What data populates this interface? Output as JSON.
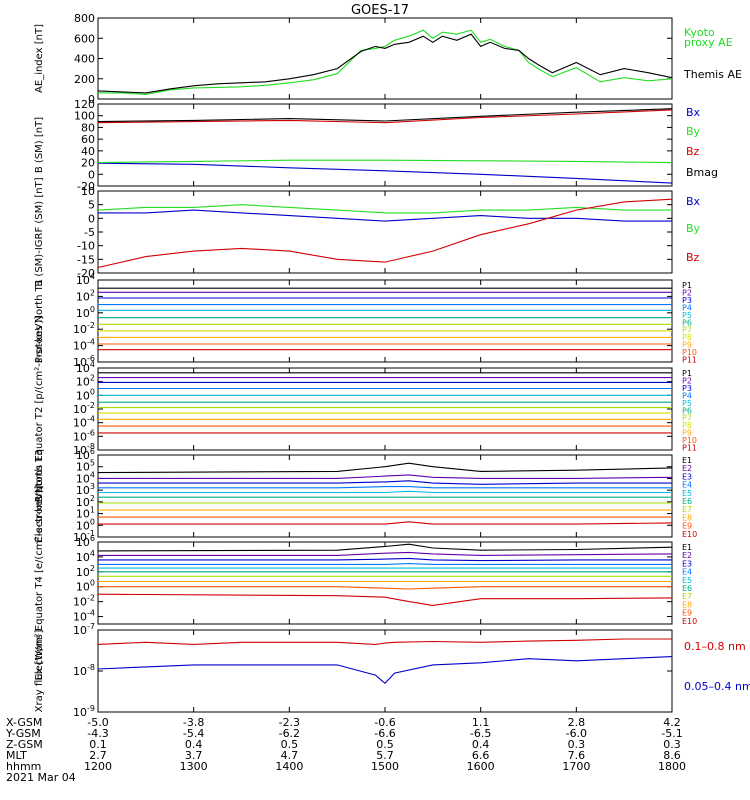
{
  "title": "GOES-17",
  "date": "2021 Mar 04",
  "colors": {
    "black": "#000000",
    "green": "#22dd22",
    "red": "#d00000",
    "blue": "#0000cc",
    "cyan": "#00bbdd",
    "yellow": "#dddd00",
    "orange": "#ff9900"
  },
  "x_axis": {
    "row_labels": [
      "X-GSM",
      "Y-GSM",
      "Z-GSM",
      "MLT",
      "hhmm"
    ],
    "columns": [
      [
        "-5.0",
        "-4.3",
        "0.1",
        "2.7",
        "1200"
      ],
      [
        "-3.8",
        "-5.4",
        "0.4",
        "3.7",
        "1300"
      ],
      [
        "-2.3",
        "-6.2",
        "0.5",
        "4.7",
        "1400"
      ],
      [
        "-0.6",
        "-6.6",
        "0.5",
        "5.7",
        "1500"
      ],
      [
        "1.1",
        "-6.5",
        "0.4",
        "6.6",
        "1600"
      ],
      [
        "2.8",
        "-6.0",
        "0.3",
        "7.6",
        "1700"
      ],
      [
        "4.2",
        "-5.1",
        "0.3",
        "8.6",
        "1800"
      ]
    ]
  },
  "chart_data": [
    {
      "type": "line",
      "ylabel": "AE_index [nT]",
      "y_ticks": [
        "800",
        "600",
        "400",
        "200",
        "0"
      ],
      "ylim": [
        0,
        800
      ],
      "x": [
        12.0,
        12.25,
        12.5,
        12.75,
        13.0,
        13.25,
        13.5,
        13.75,
        14.0,
        14.25,
        14.5,
        14.75,
        14.9,
        15.0,
        15.1,
        15.25,
        15.4,
        15.5,
        15.6,
        15.75,
        15.9,
        16.0,
        16.1,
        16.25,
        16.4,
        16.5,
        16.6,
        16.75,
        17.0,
        17.25,
        17.5,
        17.75,
        18.0
      ],
      "series": [
        {
          "name": "Kyoto proxy AE",
          "color": "#22dd22",
          "values": [
            60,
            60,
            45,
            90,
            110,
            115,
            120,
            135,
            160,
            190,
            250,
            480,
            500,
            520,
            580,
            620,
            680,
            600,
            660,
            640,
            680,
            560,
            590,
            520,
            480,
            360,
            300,
            220,
            310,
            170,
            210,
            180,
            200
          ]
        },
        {
          "name": "Themis AE",
          "color": "#000000",
          "values": [
            80,
            70,
            60,
            100,
            130,
            150,
            160,
            170,
            200,
            240,
            300,
            470,
            520,
            500,
            540,
            560,
            620,
            560,
            620,
            580,
            640,
            520,
            560,
            500,
            480,
            400,
            340,
            260,
            360,
            240,
            300,
            260,
            210
          ]
        }
      ]
    },
    {
      "type": "line",
      "ylabel": "B (SM) [nT]",
      "y_ticks": [
        "120",
        "100",
        "80",
        "60",
        "40",
        "20",
        "0",
        "-20"
      ],
      "ylim": [
        -20,
        120
      ],
      "x": [
        12,
        13,
        14,
        15,
        16,
        17,
        18
      ],
      "series": [
        {
          "name": "Bx",
          "color": "#0000cc",
          "values": [
            19,
            17,
            11,
            6,
            0,
            -7,
            -15
          ]
        },
        {
          "name": "By",
          "color": "#22dd22",
          "values": [
            20,
            22,
            24,
            24,
            23,
            22,
            20
          ]
        },
        {
          "name": "Bz",
          "color": "#d00000",
          "values": [
            88,
            90,
            92,
            88,
            97,
            103,
            110
          ]
        },
        {
          "name": "Bmag",
          "color": "#000000",
          "values": [
            90,
            92,
            95,
            91,
            99,
            106,
            112
          ]
        }
      ]
    },
    {
      "type": "line",
      "ylabel": "B (SM)-IGRF (SM) [nT]",
      "y_ticks": [
        "10",
        "5",
        "0",
        "-5",
        "-10",
        "-15",
        "-20"
      ],
      "ylim": [
        -20,
        10
      ],
      "x": [
        12.0,
        12.5,
        13.0,
        13.5,
        14.0,
        14.5,
        15.0,
        15.5,
        16.0,
        16.5,
        17.0,
        17.5,
        18.0
      ],
      "series": [
        {
          "name": "Bx",
          "color": "#0000cc",
          "values": [
            2,
            2,
            3,
            2,
            1,
            0,
            -1,
            0,
            1,
            0,
            0,
            -1,
            -1
          ]
        },
        {
          "name": "By",
          "color": "#22dd22",
          "values": [
            3,
            4,
            4,
            5,
            4,
            3,
            2,
            2,
            3,
            3,
            4,
            3,
            3
          ]
        },
        {
          "name": "Bz",
          "color": "#d00000",
          "values": [
            -18,
            -14,
            -12,
            -11,
            -12,
            -15,
            -16,
            -12,
            -6,
            -2,
            3,
            6,
            7
          ]
        }
      ]
    },
    {
      "type": "line",
      "ylabel": "Protons North T1",
      "y_ticks": [
        "10^4",
        "10^2",
        "10^0",
        "10^-2",
        "10^-4",
        "10^-6"
      ],
      "y_log_range": [
        -6,
        4
      ],
      "x": [
        12,
        18
      ],
      "series": [
        {
          "name": "P1",
          "color": "#000000",
          "values": [
            3,
            3
          ]
        },
        {
          "name": "P2",
          "color": "#6600aa",
          "values": [
            2.5,
            2.5
          ]
        },
        {
          "name": "P3",
          "color": "#0000cc",
          "values": [
            1.8,
            1.8
          ]
        },
        {
          "name": "P4",
          "color": "#0077ff",
          "values": [
            1.0,
            1.0
          ]
        },
        {
          "name": "P5",
          "color": "#00bbdd",
          "values": [
            0.3,
            0.3
          ]
        },
        {
          "name": "P6",
          "color": "#00aa88",
          "values": [
            -0.6,
            -0.6
          ]
        },
        {
          "name": "P7",
          "color": "#aadd00",
          "values": [
            -1.4,
            -1.4
          ]
        },
        {
          "name": "P8",
          "color": "#dddd00",
          "values": [
            -2.2,
            -2.2
          ]
        },
        {
          "name": "P9",
          "color": "#ffaa00",
          "values": [
            -3.0,
            -3.0
          ]
        },
        {
          "name": "P10",
          "color": "#ff5500",
          "values": [
            -3.8,
            -3.8
          ]
        },
        {
          "name": "P11",
          "color": "#d00000",
          "values": [
            -4.5,
            -4.5
          ]
        }
      ]
    },
    {
      "type": "line",
      "ylabel": "Protons Equator T2 [p/(cm²-s-sr-keV)]",
      "y_ticks": [
        "10^4",
        "10^2",
        "10^0",
        "10^-2",
        "10^-4",
        "10^-6",
        "10^-8"
      ],
      "y_log_range": [
        -8,
        4
      ],
      "x": [
        12,
        18
      ],
      "series": [
        {
          "name": "P1",
          "color": "#000000",
          "values": [
            3.3,
            3.3
          ]
        },
        {
          "name": "P2",
          "color": "#6600aa",
          "values": [
            2.6,
            2.6
          ]
        },
        {
          "name": "P3",
          "color": "#0000cc",
          "values": [
            1.9,
            1.9
          ]
        },
        {
          "name": "P4",
          "color": "#0077ff",
          "values": [
            1.0,
            1.0
          ]
        },
        {
          "name": "P5",
          "color": "#00bbdd",
          "values": [
            0.0,
            0.0
          ]
        },
        {
          "name": "P6",
          "color": "#00aa88",
          "values": [
            -1.0,
            -1.0
          ]
        },
        {
          "name": "P7",
          "color": "#aadd00",
          "values": [
            -1.8,
            -1.8
          ]
        },
        {
          "name": "P8",
          "color": "#dddd00",
          "values": [
            -2.6,
            -2.6
          ]
        },
        {
          "name": "P9",
          "color": "#ffaa00",
          "values": [
            -3.5,
            -3.5
          ]
        },
        {
          "name": "P10",
          "color": "#ff5500",
          "values": [
            -4.5,
            -4.5
          ]
        },
        {
          "name": "P11",
          "color": "#d00000",
          "values": [
            -5.5,
            -5.5
          ]
        }
      ]
    },
    {
      "type": "line",
      "ylabel": "Electrons North T3",
      "y_ticks": [
        "10^6",
        "10^5",
        "10^4",
        "10^3",
        "10^2",
        "10^1",
        "10^0",
        "10^-1"
      ],
      "y_log_range": [
        -1,
        6
      ],
      "x": [
        12.0,
        14.5,
        15.0,
        15.25,
        15.5,
        16.0,
        17.0,
        18.0
      ],
      "series": [
        {
          "name": "E1",
          "color": "#000000",
          "values": [
            4.5,
            4.6,
            5.0,
            5.3,
            5.0,
            4.6,
            4.7,
            4.9
          ]
        },
        {
          "name": "E2",
          "color": "#6600aa",
          "values": [
            4.0,
            4.0,
            4.2,
            4.3,
            4.1,
            4.0,
            4.0,
            4.1
          ]
        },
        {
          "name": "E3",
          "color": "#0000cc",
          "values": [
            3.6,
            3.6,
            3.7,
            3.8,
            3.6,
            3.5,
            3.6,
            3.6
          ]
        },
        {
          "name": "E4",
          "color": "#0077ff",
          "values": [
            3.2,
            3.2,
            3.3,
            3.3,
            3.2,
            3.2,
            3.2,
            3.2
          ]
        },
        {
          "name": "E5",
          "color": "#00bbdd",
          "values": [
            2.8,
            2.8,
            2.8,
            2.9,
            2.8,
            2.8,
            2.8,
            2.8
          ]
        },
        {
          "name": "E6",
          "color": "#00aa88",
          "values": [
            2.4,
            2.4,
            2.4,
            2.4,
            2.4,
            2.4,
            2.4,
            2.4
          ]
        },
        {
          "name": "E7",
          "color": "#aadd00",
          "values": [
            1.9,
            1.9,
            1.9,
            1.9,
            1.9,
            1.9,
            1.9,
            1.9
          ]
        },
        {
          "name": "E8",
          "color": "#ffaa00",
          "values": [
            1.3,
            1.3,
            1.3,
            1.3,
            1.3,
            1.3,
            1.3,
            1.3
          ]
        },
        {
          "name": "E9",
          "color": "#ff5500",
          "values": [
            0.7,
            0.7,
            0.7,
            0.7,
            0.7,
            0.7,
            0.7,
            0.7
          ]
        },
        {
          "name": "E10",
          "color": "#d00000",
          "values": [
            0.1,
            0.1,
            0.1,
            0.3,
            0.1,
            0.1,
            0.1,
            0.2
          ]
        }
      ]
    },
    {
      "type": "line",
      "ylabel": "Electrons Equator T4 [e/(cm²-s-sr-keV)]",
      "y_ticks": [
        "10^6",
        "10^4",
        "10^2",
        "10^0",
        "10^-2",
        "10^-4"
      ],
      "y_log_range": [
        -5,
        6
      ],
      "x": [
        12.0,
        14.5,
        15.0,
        15.25,
        15.5,
        16.0,
        17.0,
        18.0
      ],
      "series": [
        {
          "name": "E1",
          "color": "#000000",
          "values": [
            4.8,
            4.9,
            5.4,
            5.7,
            5.2,
            4.9,
            5.0,
            5.3
          ]
        },
        {
          "name": "E2",
          "color": "#6600aa",
          "values": [
            4.2,
            4.2,
            4.5,
            4.6,
            4.4,
            4.2,
            4.3,
            4.4
          ]
        },
        {
          "name": "E3",
          "color": "#0000cc",
          "values": [
            3.6,
            3.6,
            3.7,
            3.8,
            3.6,
            3.5,
            3.6,
            3.6
          ]
        },
        {
          "name": "E4",
          "color": "#0077ff",
          "values": [
            3.0,
            3.0,
            3.0,
            3.1,
            3.0,
            3.0,
            3.0,
            3.0
          ]
        },
        {
          "name": "E5",
          "color": "#00bbdd",
          "values": [
            2.5,
            2.5,
            2.5,
            2.5,
            2.5,
            2.5,
            2.5,
            2.5
          ]
        },
        {
          "name": "E6",
          "color": "#00aa88",
          "values": [
            2.0,
            2.0,
            2.0,
            2.0,
            2.0,
            2.0,
            2.0,
            2.0
          ]
        },
        {
          "name": "E7",
          "color": "#aadd00",
          "values": [
            1.4,
            1.4,
            1.4,
            1.4,
            1.4,
            1.4,
            1.4,
            1.4
          ]
        },
        {
          "name": "E8",
          "color": "#ffaa00",
          "values": [
            0.7,
            0.7,
            0.7,
            0.7,
            0.7,
            0.7,
            0.7,
            0.7
          ]
        },
        {
          "name": "E9",
          "color": "#ff5500",
          "values": [
            0.0,
            0.0,
            -0.2,
            -0.3,
            -0.2,
            0.0,
            0.0,
            0.0
          ]
        },
        {
          "name": "E10",
          "color": "#d00000",
          "values": [
            -1.0,
            -1.2,
            -1.4,
            -2.0,
            -2.5,
            -1.6,
            -1.6,
            -1.5
          ]
        }
      ]
    },
    {
      "type": "line",
      "ylabel": "Xray flux [W/m²]",
      "y_ticks": [
        "10^-7",
        "10^-8",
        "10^-9"
      ],
      "y_log_range": [
        -9,
        -7
      ],
      "x": [
        12.0,
        12.5,
        13.0,
        13.5,
        14.0,
        14.5,
        14.9,
        15.0,
        15.1,
        15.5,
        16.0,
        16.5,
        17.0,
        17.5,
        18.0
      ],
      "series": [
        {
          "name": "0.1–0.8 nm",
          "color": "#d00000",
          "values": [
            -7.35,
            -7.3,
            -7.35,
            -7.3,
            -7.3,
            -7.3,
            -7.35,
            -7.32,
            -7.3,
            -7.28,
            -7.3,
            -7.27,
            -7.25,
            -7.22,
            -7.22
          ]
        },
        {
          "name": "0.05–0.4 nm",
          "color": "#0000cc",
          "values": [
            -7.95,
            -7.9,
            -7.85,
            -7.85,
            -7.85,
            -7.85,
            -8.1,
            -8.3,
            -8.05,
            -7.85,
            -7.8,
            -7.7,
            -7.75,
            -7.7,
            -7.65
          ]
        }
      ]
    }
  ],
  "legends": {
    "ae": [
      "Kyoto",
      "proxy AE",
      "Themis AE"
    ],
    "b": [
      "Bx",
      "By",
      "Bz",
      "Bmag"
    ],
    "bi": [
      "Bx",
      "By",
      "Bz"
    ],
    "p1": [
      "P1",
      "P2",
      "P3",
      "P4",
      "P5",
      "P6",
      "P7",
      "P8",
      "P9",
      "P10",
      "P11"
    ],
    "p2": [
      "P1",
      "P2",
      "P3",
      "P4",
      "P5",
      "P6",
      "P7",
      "P8",
      "P9",
      "P10",
      "P11"
    ],
    "e3": [
      "E1",
      "E2",
      "E3",
      "E4",
      "E5",
      "E6",
      "E7",
      "E8",
      "E9",
      "E10"
    ],
    "e4": [
      "E1",
      "E2",
      "E3",
      "E4",
      "E5",
      "E6",
      "E7",
      "E8",
      "E9",
      "E10"
    ],
    "xr": [
      "0.1–0.8 nm",
      "0.05–0.4 nm"
    ]
  }
}
